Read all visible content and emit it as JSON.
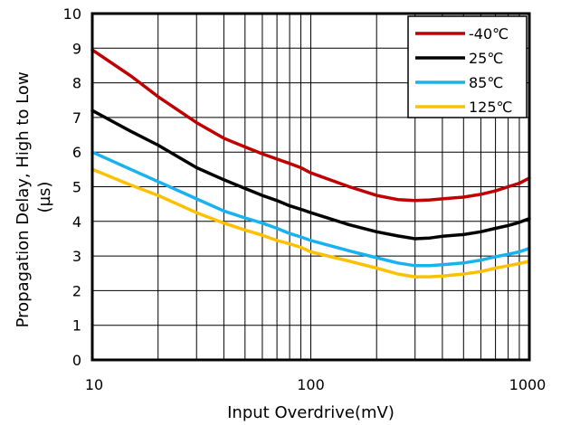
{
  "chart_data": {
    "type": "line",
    "xscale": "log",
    "xlim": [
      10,
      1000
    ],
    "ylim": [
      0,
      10
    ],
    "grid": true,
    "legend_position": "top-right",
    "xlabel": "Input Overdrive(mV)",
    "ylabel_line1": "Propagation Delay, High to Low",
    "ylabel_line2": "(µs)",
    "x_ticks": [
      10,
      100,
      1000
    ],
    "x_tick_labels": [
      "10",
      "100",
      "1000"
    ],
    "y_ticks": [
      0,
      1,
      2,
      3,
      4,
      5,
      6,
      7,
      8,
      9,
      10
    ],
    "y_tick_labels": [
      "0",
      "1",
      "2",
      "3",
      "4",
      "5",
      "6",
      "7",
      "8",
      "9",
      "10"
    ],
    "x_minor_ticks": [
      20,
      30,
      40,
      50,
      60,
      70,
      80,
      90,
      200,
      300,
      400,
      500,
      600,
      700,
      800,
      900
    ],
    "series": [
      {
        "name": "-40℃",
        "color": "#C00000",
        "x": [
          10,
          15,
          20,
          30,
          40,
          50,
          60,
          70,
          80,
          90,
          100,
          150,
          200,
          250,
          300,
          350,
          400,
          500,
          600,
          700,
          800,
          900,
          1000
        ],
        "y": [
          8.95,
          8.2,
          7.6,
          6.85,
          6.4,
          6.15,
          5.95,
          5.8,
          5.67,
          5.55,
          5.4,
          5.0,
          4.75,
          4.63,
          4.6,
          4.62,
          4.65,
          4.7,
          4.78,
          4.88,
          5.0,
          5.1,
          5.25
        ]
      },
      {
        "name": "25℃",
        "color": "#000000",
        "x": [
          10,
          15,
          20,
          30,
          40,
          50,
          60,
          70,
          80,
          90,
          100,
          150,
          200,
          250,
          300,
          350,
          400,
          500,
          600,
          700,
          800,
          900,
          1000
        ],
        "y": [
          7.2,
          6.6,
          6.2,
          5.55,
          5.2,
          4.95,
          4.75,
          4.6,
          4.45,
          4.35,
          4.25,
          3.9,
          3.7,
          3.58,
          3.5,
          3.52,
          3.57,
          3.62,
          3.7,
          3.8,
          3.88,
          3.97,
          4.08
        ]
      },
      {
        "name": "85℃",
        "color": "#19B2F0",
        "x": [
          10,
          15,
          20,
          30,
          40,
          50,
          60,
          70,
          80,
          90,
          100,
          150,
          200,
          250,
          300,
          350,
          400,
          500,
          600,
          700,
          800,
          900,
          1000
        ],
        "y": [
          6.0,
          5.5,
          5.15,
          4.65,
          4.3,
          4.1,
          3.95,
          3.8,
          3.65,
          3.55,
          3.45,
          3.15,
          2.95,
          2.8,
          2.72,
          2.72,
          2.75,
          2.8,
          2.88,
          2.98,
          3.05,
          3.12,
          3.22
        ]
      },
      {
        "name": "125℃",
        "color": "#FFC000",
        "x": [
          10,
          15,
          20,
          30,
          40,
          50,
          60,
          70,
          80,
          90,
          100,
          150,
          200,
          250,
          300,
          350,
          400,
          500,
          600,
          700,
          800,
          900,
          1000
        ],
        "y": [
          5.5,
          5.05,
          4.75,
          4.25,
          3.95,
          3.75,
          3.6,
          3.45,
          3.35,
          3.25,
          3.12,
          2.85,
          2.65,
          2.48,
          2.4,
          2.4,
          2.42,
          2.48,
          2.55,
          2.65,
          2.72,
          2.78,
          2.85
        ]
      }
    ]
  }
}
